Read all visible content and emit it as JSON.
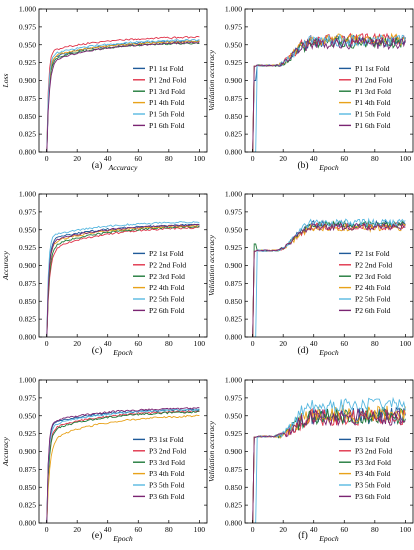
{
  "figure": {
    "panels": [
      {
        "label": "(a)"
      },
      {
        "label": "(b)"
      },
      {
        "label": "(c)"
      },
      {
        "label": "(d)"
      },
      {
        "label": "(e)"
      },
      {
        "label": "(f)"
      }
    ]
  },
  "chart_data": [
    {
      "type": "line",
      "panel": "(a)",
      "xlabel": "Accuracy",
      "ylabel": "Loss",
      "xlim": [
        -5,
        105
      ],
      "ylim": [
        0.8,
        1.0
      ],
      "xticks": [
        0,
        20,
        40,
        60,
        80,
        100
      ],
      "yticks": [
        0.8,
        0.825,
        0.85,
        0.875,
        0.9,
        0.925,
        0.95,
        0.975,
        1.0
      ],
      "ytick_labels": [
        "0.800",
        "0.825",
        "0.850",
        "0.875",
        "0.900",
        "0.925",
        "0.950",
        "0.975",
        "1.000"
      ],
      "legend_position": "bottom-right",
      "style": "smooth-train",
      "series": [
        {
          "name": "P1 1st Fold",
          "color": "#1f5a99",
          "final": 0.957,
          "plateau": 0.93,
          "k": 0.7
        },
        {
          "name": "P1 2nd Fold",
          "color": "#e0334a",
          "final": 0.962,
          "plateau": 0.94,
          "k": 0.9
        },
        {
          "name": "P1 3rd Fold",
          "color": "#1f7a3a",
          "final": 0.954,
          "plateau": 0.928,
          "k": 0.7
        },
        {
          "name": "P1 4th Fold",
          "color": "#e8a21a",
          "final": 0.956,
          "plateau": 0.932,
          "k": 0.75
        },
        {
          "name": "P1 5th Fold",
          "color": "#58b8e0",
          "final": 0.958,
          "plateau": 0.935,
          "k": 0.8
        },
        {
          "name": "P1 6th Fold",
          "color": "#7a2472",
          "final": 0.955,
          "plateau": 0.925,
          "k": 0.6
        }
      ]
    },
    {
      "type": "line",
      "panel": "(b)",
      "xlabel": "Epoch",
      "ylabel": "Validation accuracy",
      "xlim": [
        -5,
        105
      ],
      "ylim": [
        0.8,
        1.0
      ],
      "xticks": [
        0,
        20,
        40,
        60,
        80,
        100
      ],
      "yticks": [
        0.8,
        0.825,
        0.85,
        0.875,
        0.9,
        0.925,
        0.95,
        0.975,
        1.0
      ],
      "ytick_labels": [
        "0.800",
        "0.825",
        "0.850",
        "0.875",
        "0.900",
        "0.925",
        "0.950",
        "0.975",
        "1.000"
      ],
      "legend_position": "bottom-right",
      "style": "noisy-val",
      "series": [
        {
          "name": "P1 1st Fold",
          "color": "#1f5a99",
          "start": 0.9,
          "final": 0.955,
          "noise": 0.008
        },
        {
          "name": "P1 2nd Fold",
          "color": "#e0334a",
          "start": 0.92,
          "final": 0.958,
          "noise": 0.008
        },
        {
          "name": "P1 3rd Fold",
          "color": "#1f7a3a",
          "start": 0.92,
          "final": 0.953,
          "noise": 0.008
        },
        {
          "name": "P1 4th Fold",
          "color": "#e8a21a",
          "start": 0.92,
          "final": 0.957,
          "noise": 0.008
        },
        {
          "name": "P1 5th Fold",
          "color": "#58b8e0",
          "start": 0.8,
          "final": 0.956,
          "noise": 0.008
        },
        {
          "name": "P1 6th Fold",
          "color": "#7a2472",
          "start": 0.92,
          "final": 0.952,
          "noise": 0.008
        }
      ]
    },
    {
      "type": "line",
      "panel": "(c)",
      "xlabel": "Epoch",
      "ylabel": "Accuracy",
      "xlim": [
        -5,
        105
      ],
      "ylim": [
        0.8,
        1.0
      ],
      "xticks": [
        0,
        20,
        40,
        60,
        80,
        100
      ],
      "yticks": [
        0.8,
        0.825,
        0.85,
        0.875,
        0.9,
        0.925,
        0.95,
        0.975,
        1.0
      ],
      "ytick_labels": [
        "0.800",
        "0.825",
        "0.850",
        "0.875",
        "0.900",
        "0.925",
        "0.950",
        "0.975",
        "1.000"
      ],
      "legend_position": "bottom-right",
      "style": "smooth-train",
      "series": [
        {
          "name": "P2 1st Fold",
          "color": "#1f5a99",
          "final": 0.958,
          "plateau": 0.935,
          "k": 0.75
        },
        {
          "name": "P2 2nd Fold",
          "color": "#e0334a",
          "final": 0.955,
          "plateau": 0.92,
          "k": 0.55
        },
        {
          "name": "P2 3rd Fold",
          "color": "#1f7a3a",
          "final": 0.956,
          "plateau": 0.925,
          "k": 0.6
        },
        {
          "name": "P2 4th Fold",
          "color": "#e8a21a",
          "final": 0.957,
          "plateau": 0.93,
          "k": 0.7
        },
        {
          "name": "P2 5th Fold",
          "color": "#58b8e0",
          "final": 0.962,
          "plateau": 0.94,
          "k": 0.9
        },
        {
          "name": "P2 6th Fold",
          "color": "#7a2472",
          "final": 0.958,
          "plateau": 0.932,
          "k": 0.7
        }
      ]
    },
    {
      "type": "line",
      "panel": "(d)",
      "xlabel": "Epoch",
      "ylabel": "Validation accuracy",
      "xlim": [
        -5,
        105
      ],
      "ylim": [
        0.8,
        1.0
      ],
      "xticks": [
        0,
        20,
        40,
        60,
        80,
        100
      ],
      "yticks": [
        0.8,
        0.825,
        0.85,
        0.875,
        0.9,
        0.925,
        0.95,
        0.975,
        1.0
      ],
      "ytick_labels": [
        "0.800",
        "0.825",
        "0.850",
        "0.875",
        "0.900",
        "0.925",
        "0.950",
        "0.975",
        "1.000"
      ],
      "legend_position": "bottom-right",
      "style": "noisy-val",
      "series": [
        {
          "name": "P2 1st Fold",
          "color": "#1f5a99",
          "start": 0.92,
          "final": 0.958,
          "noise": 0.005
        },
        {
          "name": "P2 2nd Fold",
          "color": "#e0334a",
          "start": 0.92,
          "final": 0.955,
          "noise": 0.005
        },
        {
          "name": "P2 3rd Fold",
          "color": "#1f7a3a",
          "start": 0.93,
          "final": 0.957,
          "noise": 0.005
        },
        {
          "name": "P2 4th Fold",
          "color": "#e8a21a",
          "start": 0.92,
          "final": 0.953,
          "noise": 0.005
        },
        {
          "name": "P2 5th Fold",
          "color": "#58b8e0",
          "start": 0.8,
          "final": 0.96,
          "noise": 0.005
        },
        {
          "name": "P2 6th Fold",
          "color": "#7a2472",
          "start": 0.92,
          "final": 0.954,
          "noise": 0.005
        }
      ]
    },
    {
      "type": "line",
      "panel": "(e)",
      "xlabel": "Epoch",
      "ylabel": "Accuracy",
      "xlim": [
        -5,
        105
      ],
      "ylim": [
        0.8,
        1.0
      ],
      "xticks": [
        0,
        20,
        40,
        60,
        80,
        100
      ],
      "yticks": [
        0.8,
        0.825,
        0.85,
        0.875,
        0.9,
        0.925,
        0.95,
        0.975,
        1.0
      ],
      "ytick_labels": [
        "0.800",
        "0.825",
        "0.850",
        "0.875",
        "0.900",
        "0.925",
        "0.950",
        "0.975",
        "1.000"
      ],
      "legend_position": "bottom-right",
      "style": "smooth-train",
      "series": [
        {
          "name": "P3 1st Fold",
          "color": "#1f5a99",
          "final": 0.96,
          "plateau": 0.938,
          "k": 0.85
        },
        {
          "name": "P3 2nd Fold",
          "color": "#e0334a",
          "final": 0.958,
          "plateau": 0.93,
          "k": 0.7
        },
        {
          "name": "P3 3rd Fold",
          "color": "#1f7a3a",
          "final": 0.957,
          "plateau": 0.928,
          "k": 0.65
        },
        {
          "name": "P3 4th Fold",
          "color": "#e8a21a",
          "final": 0.952,
          "plateau": 0.915,
          "k": 0.5
        },
        {
          "name": "P3 5th Fold",
          "color": "#58b8e0",
          "final": 0.96,
          "plateau": 0.935,
          "k": 0.8
        },
        {
          "name": "P3 6th Fold",
          "color": "#7a2472",
          "final": 0.962,
          "plateau": 0.94,
          "k": 0.9
        }
      ]
    },
    {
      "type": "line",
      "panel": "(f)",
      "xlabel": "Epoch",
      "ylabel": "Validation accuracy",
      "xlim": [
        -5,
        105
      ],
      "ylim": [
        0.8,
        1.0
      ],
      "xticks": [
        0,
        20,
        40,
        60,
        80,
        100
      ],
      "yticks": [
        0.8,
        0.825,
        0.85,
        0.875,
        0.9,
        0.925,
        0.95,
        0.975,
        1.0
      ],
      "ytick_labels": [
        "0.800",
        "0.825",
        "0.850",
        "0.875",
        "0.900",
        "0.925",
        "0.950",
        "0.975",
        "1.000"
      ],
      "legend_position": "bottom-right",
      "style": "noisy-val",
      "series": [
        {
          "name": "P3 1st Fold",
          "color": "#1f5a99",
          "start": 0.92,
          "final": 0.95,
          "noise": 0.012
        },
        {
          "name": "P3 2nd Fold",
          "color": "#e0334a",
          "start": 0.92,
          "final": 0.948,
          "noise": 0.012
        },
        {
          "name": "P3 3rd Fold",
          "color": "#1f7a3a",
          "start": 0.92,
          "final": 0.95,
          "noise": 0.012
        },
        {
          "name": "P3 4th Fold",
          "color": "#e8a21a",
          "start": 0.92,
          "final": 0.952,
          "noise": 0.012
        },
        {
          "name": "P3 5th Fold",
          "color": "#58b8e0",
          "start": 0.8,
          "final": 0.965,
          "noise": 0.01
        },
        {
          "name": "P3 6th Fold",
          "color": "#7a2472",
          "start": 0.92,
          "final": 0.948,
          "noise": 0.012
        }
      ]
    }
  ]
}
